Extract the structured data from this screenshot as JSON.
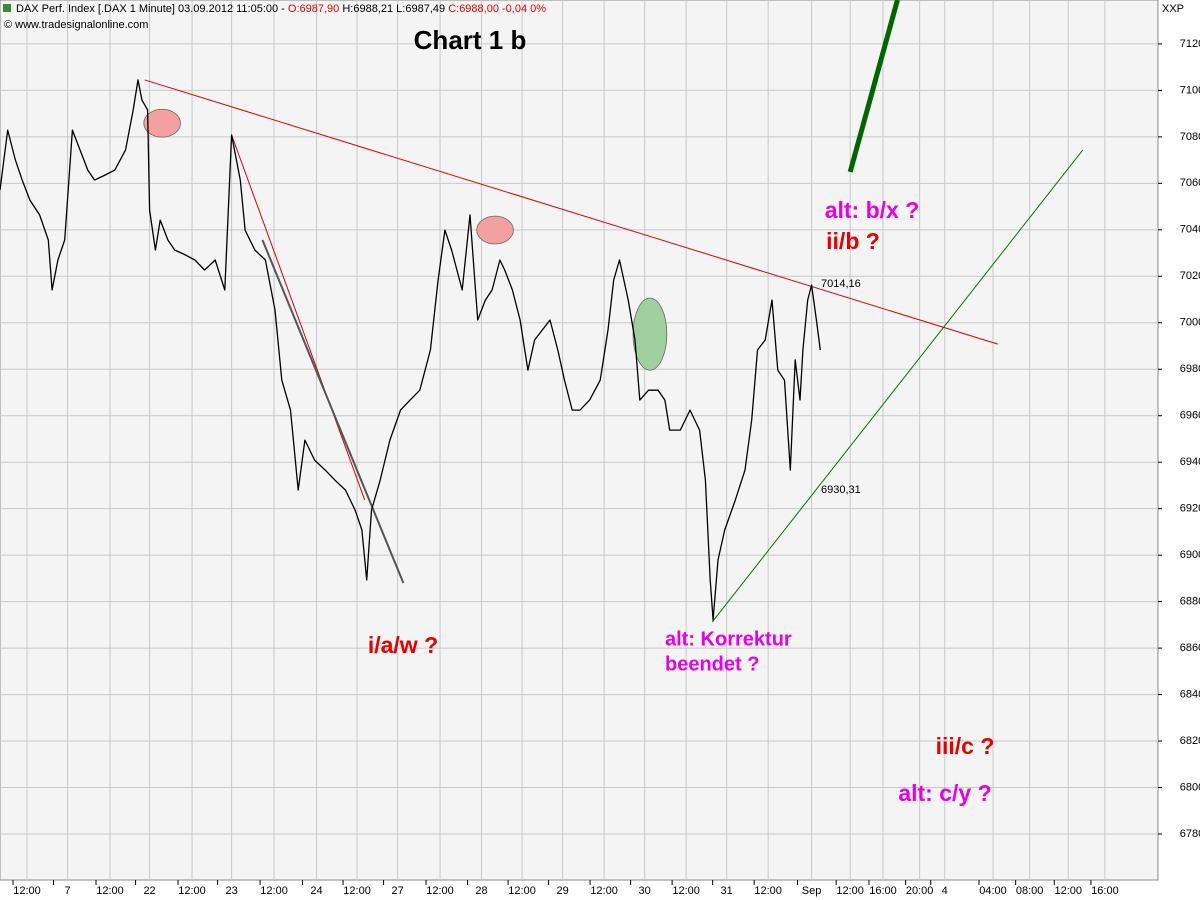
{
  "header": {
    "name": "DAX Perf. Index [.DAX  1 Minute] 03.09.2012 11:05:00 -",
    "open": "O:6987,90",
    "high_low": "H:6988,21 L:6987,49",
    "close": "C:6988,00 -0,04 0%",
    "source": "© www.tradesignalonline.com",
    "symbol": "XXP"
  },
  "chart_data": {
    "type": "line",
    "title": "Chart 1 b",
    "annotations": [
      "alt: b/x ?",
      "ii/b ?",
      "i/a/w ?",
      "alt: Korrektur",
      "beendet ?",
      "iii/c ?",
      "alt: c/y ?",
      "7014,16",
      "6930,31"
    ],
    "x": [
      0.0,
      0.8,
      1.6,
      2.3,
      3.1,
      4.1,
      5.0,
      5.4,
      6.0,
      6.7,
      7.5,
      8.3,
      9.1,
      9.8,
      10.9,
      11.9,
      13.0,
      13.8,
      14.3,
      14.7,
      15.3,
      15.5,
      16.1,
      16.6,
      17.4,
      18.1,
      19.2,
      20.2,
      21.2,
      22.3,
      23.3,
      24.0,
      24.9,
      25.4,
      26.4,
      27.5,
      28.5,
      29.2,
      30.1,
      30.9,
      31.6,
      32.6,
      33.7,
      34.7,
      35.8,
      36.8,
      37.5,
      38.0,
      38.5,
      39.4,
      40.4,
      41.5,
      42.5,
      43.5,
      44.6,
      45.4,
      46.1,
      46.8,
      47.9,
      48.7,
      49.5,
      50.3,
      51.0,
      51.8,
      52.3,
      53.1,
      53.9,
      54.7,
      55.4,
      56.2,
      57.0,
      57.8,
      58.5,
      59.3,
      60.1,
      61.1,
      62.2,
      63.0,
      63.6,
      64.2,
      65.1,
      65.8,
      66.3,
      67.2,
      68.2,
      68.9,
      69.4,
      70.5,
      71.5,
      72.5,
      73.1,
      73.6,
      73.9,
      74.4,
      75.1,
      76.2,
      77.2,
      77.9,
      78.5,
      79.3,
      80.0,
      80.6,
      81.3,
      81.9,
      82.4,
      82.9,
      83.2,
      83.7,
      84.1,
      84.6,
      85.0
    ],
    "series": [
      {
        "name": "DAX",
        "color": "#000000",
        "values": [
          7057.1,
          7082.9,
          7070.0,
          7061.4,
          7052.8,
          7046.4,
          7035.6,
          7014.1,
          7027.0,
          7035.6,
          7082.9,
          7074.3,
          7065.7,
          7061.4,
          7063.6,
          7065.7,
          7074.3,
          7091.6,
          7104.5,
          7095.9,
          7091.6,
          7048.5,
          7031.3,
          7044.2,
          7035.6,
          7031.3,
          7029.2,
          7027.0,
          7022.7,
          7027.0,
          7014.1,
          7080.8,
          7061.4,
          7039.9,
          7031.3,
          7027.0,
          7005.5,
          6975.3,
          6962.4,
          6928.0,
          6949.5,
          6940.9,
          6936.6,
          6932.3,
          6928.0,
          6919.4,
          6910.8,
          6889.3,
          6919.4,
          6932.3,
          6949.5,
          6962.4,
          6966.7,
          6971.0,
          6988.3,
          7018.4,
          7039.9,
          7031.3,
          7014.1,
          7046.4,
          7001.2,
          7009.8,
          7014.1,
          7027.0,
          7022.7,
          7014.1,
          7001.2,
          6979.6,
          6992.6,
          6996.9,
          7001.2,
          6988.3,
          6975.3,
          6962.4,
          6962.4,
          6966.7,
          6975.3,
          6996.9,
          7018.4,
          7027.0,
          7009.8,
          6992.6,
          6966.7,
          6971.0,
          6971.0,
          6966.7,
          6953.8,
          6953.8,
          6962.4,
          6953.8,
          6932.3,
          6889.3,
          6872.1,
          6897.9,
          6910.8,
          6923.7,
          6936.6,
          6958.1,
          6988.3,
          6992.6,
          7009.8,
          6979.6,
          6975.3,
          6936.6,
          6984.0,
          6966.7,
          6988.3,
          7009.8,
          7016.2,
          7001.2,
          6988.3
        ]
      }
    ],
    "trend_lines": [
      {
        "color": "#dd0000",
        "width": 1,
        "x": [
          15.0,
          103.4
        ],
        "y": [
          7104.5,
          6990.8
        ]
      },
      {
        "color": "#dd0000",
        "width": 1,
        "x": [
          24.0,
          37.8
        ],
        "y": [
          7080.8,
          6923.7
        ]
      },
      {
        "color": "#555555",
        "width": 2,
        "x": [
          27.2,
          41.8
        ],
        "y": [
          7035.6,
          6888.0
        ]
      },
      {
        "color": "#007700",
        "width": 1,
        "x": [
          73.8,
          112.2
        ],
        "y": [
          6871.2,
          7074.3
        ]
      },
      {
        "color": "#006600",
        "width": 5,
        "x": [
          88.1,
          93.0
        ],
        "y": [
          7064.9,
          7138.9
        ]
      }
    ],
    "ellipses": [
      {
        "color": "#f4a0a0",
        "x": [
          14.9,
          18.7
        ],
        "y": [
          7079.9,
          7091.9
        ]
      },
      {
        "color": "#f4a0a0",
        "x": [
          49.4,
          53.2
        ],
        "y": [
          7033.9,
          7045.9
        ]
      },
      {
        "color": "#a0d0a0",
        "x": [
          65.6,
          69.1
        ],
        "y": [
          6979.6,
          7010.6
        ]
      }
    ],
    "xlim": [
      0,
      120
    ],
    "ylim": [
      6760.2,
      7138.9
    ],
    "xticks": [
      {
        "value": 2.8,
        "label": "12:00"
      },
      7.0,
      {
        "value": 11.4,
        "label": "12:00"
      },
      {
        "value": 15.5,
        "label": "22"
      },
      {
        "value": 19.9,
        "label": "12:00"
      },
      {
        "value": 24.0,
        "label": "23"
      },
      {
        "value": 28.4,
        "label": "12:00"
      },
      {
        "value": 32.8,
        "label": "24"
      },
      {
        "value": 37.0,
        "label": "12:00"
      },
      {
        "value": 41.2,
        "label": "27"
      },
      {
        "value": 45.6,
        "label": "12:00"
      },
      {
        "value": 49.9,
        "label": "28"
      },
      {
        "value": 54.1,
        "label": "12:00"
      },
      {
        "value": 58.3,
        "label": "29"
      },
      {
        "value": 62.6,
        "label": "12:00"
      },
      {
        "value": 66.8,
        "label": "30"
      },
      {
        "value": 71.1,
        "label": "12:00"
      },
      {
        "value": 75.3,
        "label": "31"
      },
      {
        "value": 79.6,
        "label": "12:00"
      },
      {
        "value": 84.1,
        "label": "Sep"
      },
      {
        "value": 88.1,
        "label": "12:00"
      },
      {
        "value": 91.5,
        "label": "16:00"
      },
      {
        "value": 95.3,
        "label": "20:00"
      },
      {
        "value": 97.9,
        "label": "4"
      },
      {
        "value": 102.9,
        "label": "04:00"
      },
      {
        "value": 106.7,
        "label": "08:00"
      },
      {
        "value": 110.7,
        "label": "12:00"
      },
      {
        "value": 114.5,
        "label": "16:00"
      }
    ],
    "yticks": [
      6780,
      6800,
      6820,
      6840,
      6860,
      6880,
      6900,
      6920,
      6940,
      6960,
      6980,
      7000,
      7020,
      7040,
      7060,
      7080,
      7100,
      7120
    ],
    "grid": true
  }
}
